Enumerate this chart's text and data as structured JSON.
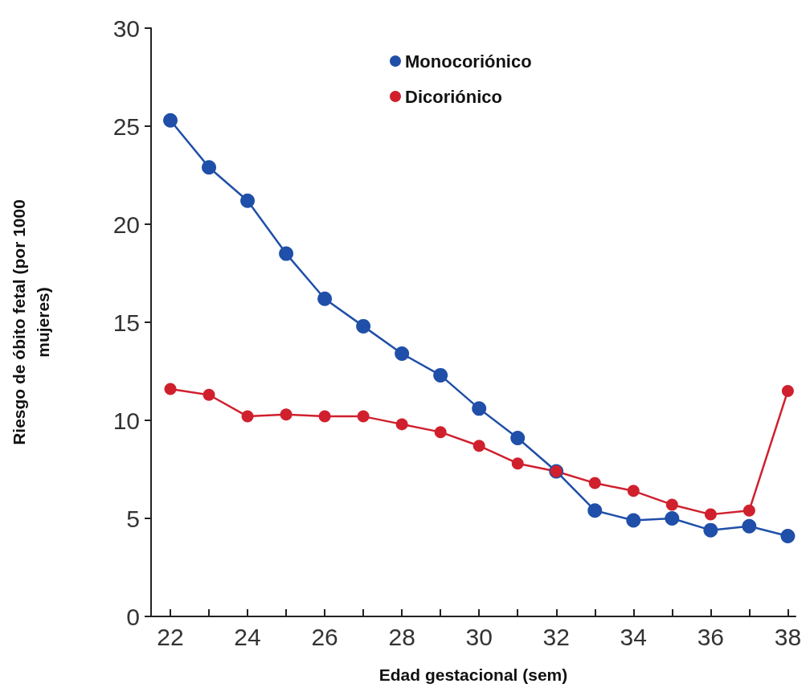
{
  "chart_data": {
    "type": "line",
    "xlabel": "Edad gestacional (sem)",
    "ylabel": "Riesgo de óbito fetal (por 1000\nmujeres)",
    "x": [
      22,
      23,
      24,
      25,
      26,
      27,
      28,
      29,
      30,
      31,
      32,
      33,
      34,
      35,
      36,
      37,
      38
    ],
    "series": [
      {
        "name": "Monocoriónico",
        "color": "#1f4fa8",
        "values": [
          25.3,
          22.9,
          21.2,
          18.5,
          16.2,
          14.8,
          13.4,
          12.3,
          10.6,
          9.1,
          7.4,
          5.4,
          4.9,
          5.0,
          4.4,
          4.6,
          4.1
        ]
      },
      {
        "name": "Dicoriónico",
        "color": "#d0202e",
        "values": [
          11.6,
          11.3,
          10.2,
          10.3,
          10.2,
          10.2,
          9.8,
          9.4,
          8.7,
          7.8,
          7.4,
          6.8,
          6.4,
          5.7,
          5.2,
          5.4,
          11.5
        ]
      }
    ],
    "xlim": [
      21.5,
      38.2
    ],
    "xticks": [
      22,
      {
        "value": 23,
        "label": null
      },
      24,
      {
        "value": 25,
        "label": null
      },
      26,
      {
        "value": 27,
        "label": null
      },
      28,
      {
        "value": 29,
        "label": null
      },
      30,
      {
        "value": 31,
        "label": null
      },
      32,
      {
        "value": 33,
        "label": null
      },
      34,
      {
        "value": 35,
        "label": null
      },
      36,
      {
        "value": 37,
        "label": null
      },
      38
    ],
    "ylim": [
      0,
      30
    ],
    "yticks": [
      0,
      5,
      10,
      15,
      20,
      25,
      30
    ],
    "grid": false,
    "legend": "top right",
    "marker": "circle",
    "line_style": "solid"
  }
}
